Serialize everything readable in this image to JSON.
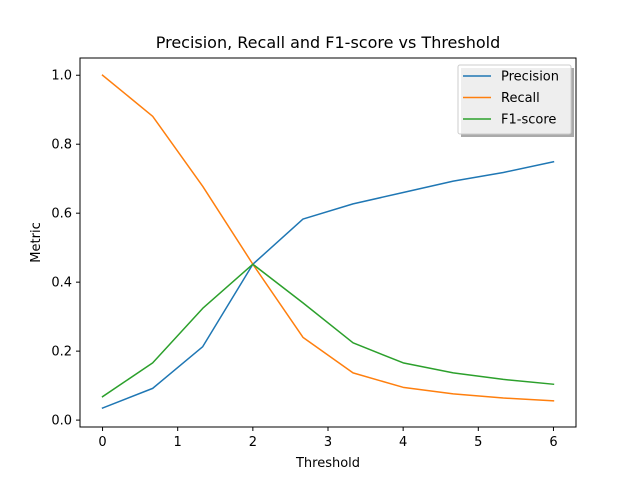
{
  "chart_data": {
    "type": "line",
    "title": "Precision, Recall and F1-score vs Threshold",
    "xlabel": "Threshold",
    "ylabel": "Metric",
    "xlim": [
      -0.3,
      6.3
    ],
    "ylim": [
      -0.02,
      1.05
    ],
    "xticks": [
      0,
      1,
      2,
      3,
      4,
      5,
      6
    ],
    "yticks": [
      0.0,
      0.2,
      0.4,
      0.6,
      0.8,
      1.0
    ],
    "xtick_labels": [
      "0",
      "1",
      "2",
      "3",
      "4",
      "5",
      "6"
    ],
    "ytick_labels": [
      "0.0",
      "0.2",
      "0.4",
      "0.6",
      "0.8",
      "1.0"
    ],
    "x": [
      0,
      0.667,
      1.333,
      2.0,
      2.667,
      3.333,
      4.0,
      4.667,
      5.333,
      6.0
    ],
    "grid": false,
    "legend_position": "upper-right",
    "series": [
      {
        "name": "Precision",
        "color": "#1f77b4",
        "values": [
          0.035,
          0.092,
          0.213,
          0.452,
          0.583,
          0.627,
          0.66,
          0.693,
          0.718,
          0.749
        ]
      },
      {
        "name": "Recall",
        "color": "#ff7f0e",
        "values": [
          1.0,
          0.881,
          0.678,
          0.452,
          0.24,
          0.137,
          0.095,
          0.076,
          0.064,
          0.056
        ]
      },
      {
        "name": "F1-score",
        "color": "#2ca02c",
        "values": [
          0.068,
          0.166,
          0.324,
          0.452,
          0.34,
          0.224,
          0.166,
          0.137,
          0.118,
          0.104
        ]
      }
    ]
  }
}
